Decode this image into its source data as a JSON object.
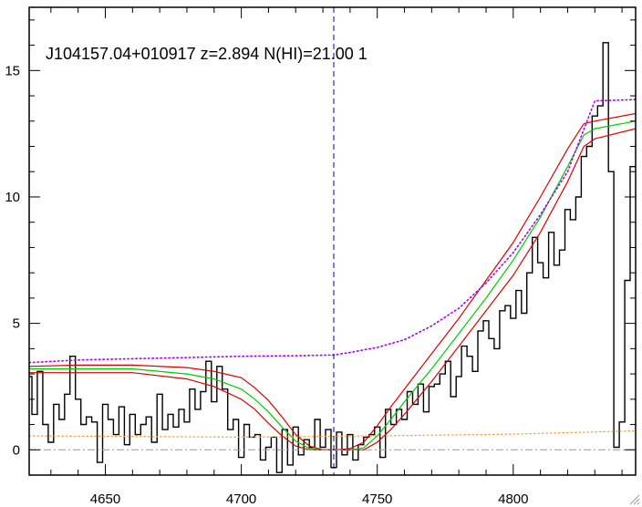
{
  "chart_data": {
    "type": "line",
    "title": "J104157.04+010917 z=2.894 N(HI)=21.00 1",
    "xlabel": "",
    "ylabel": "",
    "xlim": [
      4622,
      4845
    ],
    "ylim": [
      -1.0,
      17.5
    ],
    "grid": false,
    "x_ticks": [
      4650,
      4700,
      4750,
      4800
    ],
    "y_ticks": [
      0,
      5,
      10,
      15
    ],
    "x_tick_labels": [
      "4650",
      "4700",
      "4750",
      "4800"
    ],
    "y_tick_labels": [
      "0",
      "5",
      "10",
      "15"
    ],
    "reference_lines": {
      "vertical_x": 4734,
      "horizontal_y": 0
    },
    "colors": {
      "flux": "#000000",
      "model": "#00cc00",
      "model_bounds": "#dd0000",
      "upper_continuum": "#aa00ff",
      "error": "#ff9933",
      "zero_line": "#999999",
      "center_line": "#0000cc"
    },
    "series": [
      {
        "style": "step",
        "role": "flux",
        "x": [
          4622,
          4624,
          4626,
          4628,
          4630,
          4632,
          4634,
          4636,
          4638,
          4640,
          4642,
          4644,
          4646,
          4648,
          4650,
          4652,
          4654,
          4656,
          4658,
          4660,
          4662,
          4664,
          4666,
          4668,
          4670,
          4672,
          4674,
          4676,
          4678,
          4680,
          4682,
          4684,
          4686,
          4688,
          4690,
          4692,
          4694,
          4696,
          4698,
          4700,
          4702,
          4704,
          4706,
          4708,
          4710,
          4712,
          4714,
          4716,
          4718,
          4720,
          4722,
          4724,
          4726,
          4728,
          4730,
          4732,
          4734,
          4736,
          4738,
          4740,
          4742,
          4744,
          4746,
          4748,
          4750,
          4752,
          4754,
          4756,
          4758,
          4760,
          4762,
          4764,
          4766,
          4768,
          4770,
          4772,
          4774,
          4776,
          4778,
          4780,
          4782,
          4784,
          4786,
          4788,
          4790,
          4792,
          4794,
          4796,
          4798,
          4800,
          4802,
          4804,
          4806,
          4808,
          4810,
          4812,
          4814,
          4816,
          4818,
          4820,
          4822,
          4824,
          4826,
          4828,
          4830,
          4832,
          4834,
          4836,
          4838,
          4840,
          4842,
          4844
        ],
        "y": [
          2.9,
          1.4,
          3.1,
          1.0,
          0.3,
          1.8,
          1.2,
          2.2,
          3.7,
          2.0,
          1.0,
          1.3,
          1.1,
          -0.5,
          1.8,
          1.2,
          0.6,
          1.7,
          0.2,
          1.4,
          0.6,
          1.0,
          1.3,
          0.3,
          2.2,
          0.8,
          1.4,
          0.9,
          1.6,
          1.1,
          2.4,
          1.6,
          2.3,
          3.5,
          1.9,
          3.3,
          2.4,
          0.8,
          1.2,
          -0.3,
          1.0,
          0.5,
          0.6,
          -0.4,
          0.1,
          0.5,
          -0.9,
          0.8,
          -0.6,
          0.9,
          -0.2,
          0.4,
          0.1,
          1.2,
          0.1,
          0.8,
          -0.7,
          0.7,
          -0.2,
          0.6,
          -0.4,
          0.2,
          0.5,
          0.6,
          0.9,
          -0.3,
          1.6,
          1.0,
          1.6,
          1.2,
          2.3,
          1.8,
          2.6,
          1.5,
          2.5,
          2.6,
          3.0,
          3.5,
          2.1,
          2.9,
          4.1,
          3.7,
          3.1,
          4.7,
          5.1,
          4.4,
          4.0,
          5.5,
          5.7,
          5.2,
          6.3,
          5.4,
          7.0,
          8.4,
          7.4,
          6.8,
          8.6,
          7.3,
          7.9,
          9.5,
          9.1,
          10.0,
          11.6,
          12.0,
          13.2,
          13.6,
          16.1,
          11.0,
          0.1,
          1.1,
          6.7,
          11.2
        ]
      },
      {
        "style": "line",
        "role": "model",
        "x": [
          4622,
          4640,
          4660,
          4680,
          4690,
          4700,
          4705,
          4710,
          4715,
          4720,
          4725,
          4730,
          4735,
          4740,
          4745,
          4750,
          4755,
          4760,
          4770,
          4780,
          4790,
          4800,
          4810,
          4820,
          4826,
          4830,
          4845
        ],
        "y": [
          3.2,
          3.2,
          3.2,
          3.0,
          2.8,
          2.4,
          2.0,
          1.5,
          0.9,
          0.35,
          0.05,
          0.0,
          0.0,
          0.0,
          0.08,
          0.55,
          1.2,
          1.9,
          3.2,
          4.6,
          6.0,
          7.5,
          9.2,
          11.2,
          12.45,
          12.7,
          13.0
        ]
      },
      {
        "style": "line",
        "role": "model-upper",
        "x": [
          4622,
          4640,
          4660,
          4680,
          4690,
          4700,
          4705,
          4710,
          4715,
          4720,
          4725,
          4730,
          4735,
          4740,
          4745,
          4750,
          4755,
          4760,
          4770,
          4780,
          4790,
          4800,
          4810,
          4820,
          4826,
          4830,
          4845
        ],
        "y": [
          3.3,
          3.35,
          3.35,
          3.25,
          3.1,
          2.85,
          2.45,
          1.95,
          1.3,
          0.6,
          0.15,
          0.0,
          0.0,
          0.05,
          0.3,
          0.95,
          1.7,
          2.4,
          3.8,
          5.2,
          6.7,
          8.2,
          10.0,
          11.9,
          12.9,
          13.0,
          13.3
        ]
      },
      {
        "style": "line",
        "role": "model-lower",
        "x": [
          4622,
          4640,
          4660,
          4680,
          4690,
          4700,
          4705,
          4710,
          4715,
          4720,
          4725,
          4730,
          4735,
          4740,
          4745,
          4750,
          4755,
          4760,
          4770,
          4780,
          4790,
          4800,
          4810,
          4820,
          4826,
          4830,
          4845
        ],
        "y": [
          3.05,
          3.05,
          3.05,
          2.8,
          2.5,
          2.0,
          1.6,
          1.05,
          0.55,
          0.15,
          0.0,
          0.0,
          0.0,
          0.0,
          0.0,
          0.3,
          0.8,
          1.4,
          2.7,
          4.1,
          5.5,
          6.9,
          8.6,
          10.6,
          12.0,
          12.3,
          12.7
        ]
      },
      {
        "style": "dotted",
        "role": "upper-continuum",
        "x": [
          4622,
          4640,
          4660,
          4680,
          4700,
          4720,
          4734,
          4740,
          4750,
          4760,
          4770,
          4780,
          4790,
          4800,
          4810,
          4820,
          4830,
          4845
        ],
        "y": [
          3.45,
          3.55,
          3.6,
          3.65,
          3.7,
          3.72,
          3.75,
          3.85,
          4.05,
          4.35,
          4.9,
          5.6,
          6.6,
          7.8,
          9.3,
          11.0,
          13.8,
          13.85
        ]
      },
      {
        "style": "dotted",
        "role": "error",
        "x": [
          4622,
          4700,
          4750,
          4800,
          4845
        ],
        "y": [
          0.55,
          0.5,
          0.55,
          0.62,
          0.75
        ]
      }
    ]
  }
}
